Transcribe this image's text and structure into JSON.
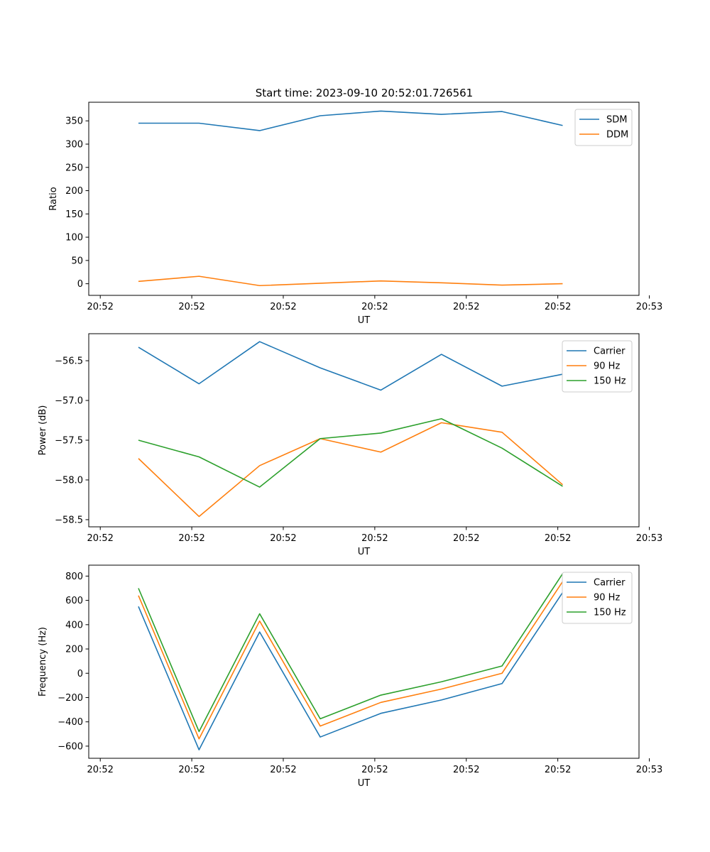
{
  "figure_title": "Start time: 2023-09-10 20:52:01.726561",
  "chart_data": [
    {
      "type": "line",
      "title": "Start time: 2023-09-10 20:52:01.726561",
      "xlabel": "UT",
      "ylabel": "Ratio",
      "x": [
        1,
        2,
        3,
        4,
        5,
        6,
        7,
        8
      ],
      "xlim": [
        0.18,
        9.26
      ],
      "x_ticks": [
        0.37,
        1.88,
        3.39,
        4.9,
        6.41,
        7.92,
        9.43
      ],
      "x_tick_labels": [
        "20:52",
        "20:52",
        "20:52",
        "20:52",
        "20:52",
        "20:52",
        "20:53"
      ],
      "ylim": [
        -25,
        390
      ],
      "y_ticks": [
        0,
        50,
        100,
        150,
        200,
        250,
        300,
        350
      ],
      "y_tick_labels": [
        "0",
        "50",
        "100",
        "150",
        "200",
        "250",
        "300",
        "350"
      ],
      "legend_location": "upper-right",
      "series": [
        {
          "name": "SDM",
          "color": "#1f77b4",
          "values": [
            345,
            345,
            329,
            361,
            371,
            364,
            370,
            340
          ]
        },
        {
          "name": "DDM",
          "color": "#ff7f0e",
          "values": [
            5,
            16,
            -4,
            1,
            6,
            2,
            -3,
            0
          ]
        }
      ]
    },
    {
      "type": "line",
      "xlabel": "UT",
      "ylabel": "Power (dB)",
      "x": [
        1,
        2,
        3,
        4,
        5,
        6,
        7,
        8
      ],
      "xlim": [
        0.18,
        9.26
      ],
      "x_ticks": [
        0.37,
        1.88,
        3.39,
        4.9,
        6.41,
        7.92,
        9.43
      ],
      "x_tick_labels": [
        "20:52",
        "20:52",
        "20:52",
        "20:52",
        "20:52",
        "20:52",
        "20:53"
      ],
      "ylim": [
        -58.59,
        -56.16
      ],
      "y_ticks": [
        -58.5,
        -58.0,
        -57.5,
        -57.0,
        -56.5
      ],
      "y_tick_labels": [
        "−58.5",
        "−58.0",
        "−57.5",
        "−57.0",
        "−56.5"
      ],
      "legend_location": "upper-right",
      "series": [
        {
          "name": "Carrier",
          "color": "#1f77b4",
          "values": [
            -56.33,
            -56.79,
            -56.26,
            -56.59,
            -56.87,
            -56.42,
            -56.82,
            -56.67
          ]
        },
        {
          "name": "90 Hz",
          "color": "#ff7f0e",
          "values": [
            -57.73,
            -58.46,
            -57.82,
            -57.48,
            -57.65,
            -57.28,
            -57.4,
            -58.06
          ]
        },
        {
          "name": "150 Hz",
          "color": "#2ca02c",
          "values": [
            -57.5,
            -57.71,
            -58.09,
            -57.48,
            -57.41,
            -57.23,
            -57.6,
            -58.08
          ]
        }
      ]
    },
    {
      "type": "line",
      "xlabel": "UT",
      "ylabel": "Frequency (Hz)",
      "x": [
        1,
        2,
        3,
        4,
        5,
        6,
        7,
        8
      ],
      "xlim": [
        0.18,
        9.26
      ],
      "x_ticks": [
        0.37,
        1.88,
        3.39,
        4.9,
        6.41,
        7.92,
        9.43
      ],
      "x_tick_labels": [
        "20:52",
        "20:52",
        "20:52",
        "20:52",
        "20:52",
        "20:52",
        "20:53"
      ],
      "ylim": [
        -700,
        890
      ],
      "y_ticks": [
        -600,
        -400,
        -200,
        0,
        200,
        400,
        600,
        800
      ],
      "y_tick_labels": [
        "−600",
        "−400",
        "−200",
        "0",
        "200",
        "400",
        "600",
        "800"
      ],
      "legend_location": "upper-right",
      "series": [
        {
          "name": "Carrier",
          "color": "#1f77b4",
          "values": [
            550,
            -630,
            340,
            -525,
            -330,
            -220,
            -85,
            665
          ]
        },
        {
          "name": "90 Hz",
          "color": "#ff7f0e",
          "values": [
            640,
            -540,
            430,
            -435,
            -240,
            -130,
            0,
            755
          ]
        },
        {
          "name": "150 Hz",
          "color": "#2ca02c",
          "values": [
            700,
            -480,
            490,
            -375,
            -180,
            -70,
            60,
            820
          ]
        }
      ]
    }
  ]
}
